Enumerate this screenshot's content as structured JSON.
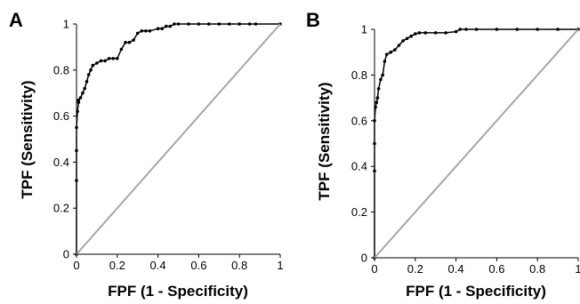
{
  "chart_data": [
    {
      "type": "line",
      "panel_label": "A",
      "xlabel": "FPF (1 - Specificity)",
      "ylabel": "TPF (Sensitivity)",
      "xlim": [
        0,
        1
      ],
      "ylim": [
        0,
        1
      ],
      "x_ticks": [
        "0",
        "0.2",
        "0.4",
        "0.6",
        "0.8",
        "1"
      ],
      "y_ticks": [
        "0",
        "0.2",
        "0.4",
        "0.6",
        "0.8",
        "1"
      ],
      "grid": false,
      "legend": "none",
      "colors": {
        "roc": "#000000",
        "reference": "#a6a6a6",
        "axis": "#000000"
      },
      "series": [
        {
          "role": "roc",
          "x": [
            0,
            0,
            0,
            0,
            0.005,
            0.01,
            0.01,
            0.02,
            0.03,
            0.04,
            0.05,
            0.06,
            0.07,
            0.08,
            0.1,
            0.12,
            0.14,
            0.16,
            0.18,
            0.2,
            0.22,
            0.24,
            0.26,
            0.28,
            0.3,
            0.32,
            0.34,
            0.36,
            0.4,
            0.42,
            0.44,
            0.46,
            0.48,
            0.5,
            0.55,
            0.6,
            0.65,
            0.7,
            0.75,
            0.8,
            0.85,
            0.88,
            1.0
          ],
          "y": [
            0,
            0.32,
            0.45,
            0.55,
            0.62,
            0.66,
            0.67,
            0.68,
            0.7,
            0.72,
            0.75,
            0.78,
            0.8,
            0.82,
            0.83,
            0.84,
            0.84,
            0.85,
            0.85,
            0.85,
            0.89,
            0.92,
            0.92,
            0.93,
            0.96,
            0.97,
            0.97,
            0.97,
            0.98,
            0.98,
            0.99,
            0.99,
            1.0,
            1.0,
            1.0,
            1.0,
            1.0,
            1.0,
            1.0,
            1.0,
            1.0,
            1.0,
            1.0
          ]
        },
        {
          "role": "reference",
          "x": [
            0,
            1
          ],
          "y": [
            0,
            1
          ]
        }
      ]
    },
    {
      "type": "line",
      "panel_label": "B",
      "xlabel": "FPF (1 - Specificity)",
      "ylabel": "TPF (Sensitivity)",
      "xlim": [
        0,
        1
      ],
      "ylim": [
        0,
        1
      ],
      "x_ticks": [
        "0",
        "0.2",
        "0.4",
        "0.6",
        "0.8",
        "1"
      ],
      "y_ticks": [
        "0",
        "0.2",
        "0.4",
        "0.6",
        "0.8",
        "1"
      ],
      "grid": false,
      "legend": "none",
      "colors": {
        "roc": "#000000",
        "reference": "#a6a6a6",
        "axis": "#000000"
      },
      "series": [
        {
          "role": "roc",
          "x": [
            0,
            0,
            0,
            0,
            0.005,
            0.01,
            0.015,
            0.02,
            0.03,
            0.04,
            0.05,
            0.06,
            0.08,
            0.1,
            0.12,
            0.14,
            0.16,
            0.18,
            0.2,
            0.22,
            0.25,
            0.3,
            0.35,
            0.4,
            0.42,
            0.45,
            0.5,
            0.6,
            0.7,
            0.8,
            0.9,
            1.0
          ],
          "y": [
            0,
            0.38,
            0.5,
            0.6,
            0.66,
            0.68,
            0.7,
            0.74,
            0.78,
            0.8,
            0.86,
            0.89,
            0.9,
            0.91,
            0.93,
            0.95,
            0.96,
            0.97,
            0.98,
            0.985,
            0.985,
            0.985,
            0.985,
            0.99,
            1.0,
            1.0,
            1.0,
            1.0,
            1.0,
            1.0,
            1.0,
            1.0
          ]
        },
        {
          "role": "reference",
          "x": [
            0,
            1
          ],
          "y": [
            0,
            1
          ]
        }
      ]
    }
  ]
}
